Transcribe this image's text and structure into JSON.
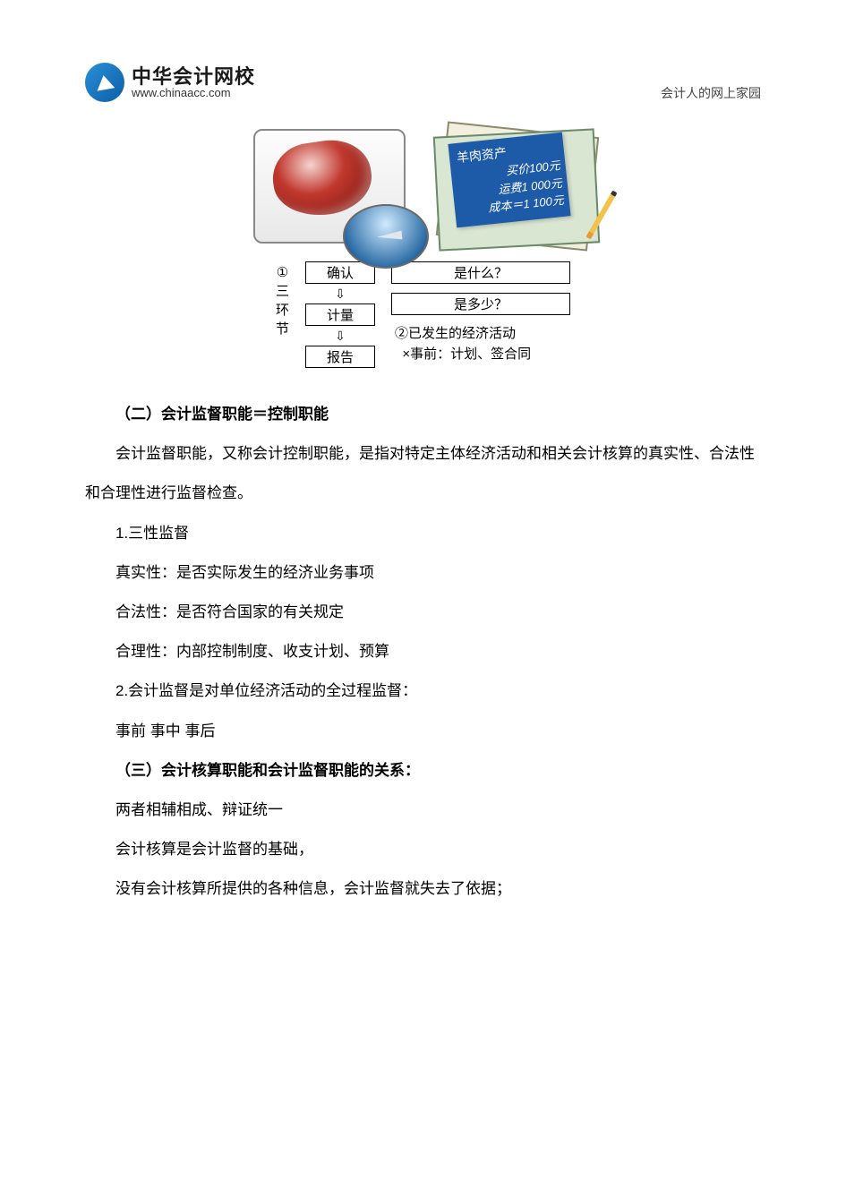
{
  "header": {
    "logo_cn": "中华会计网校",
    "logo_url": "www.chinaacc.com",
    "tagline": "会计人的网上家园"
  },
  "illustration": {
    "ledger": {
      "title": "羊肉资产",
      "line1": "买价100元",
      "line2": "运费1 000元",
      "line3": "成本＝1 100元"
    },
    "side_label_mark": "①",
    "side_label": [
      "三",
      "环",
      "节"
    ],
    "flow_boxes": [
      "确认",
      "计量",
      "报告"
    ],
    "right_boxes": [
      "是什么？",
      "是多少？"
    ],
    "right_text_line1": "②已发生的经济活动",
    "right_text_line2": "×事前：计划、签合同"
  },
  "body": {
    "h2": "（二）会计监督职能＝控制职能",
    "p1": "会计监督职能，又称会计控制职能，是指对特定主体经济活动和相关会计核算的真实性、合法性和合理性进行监督检查。",
    "p2": "1.三性监督",
    "p3": "真实性：是否实际发生的经济业务事项",
    "p4": "合法性：是否符合国家的有关规定",
    "p5": "合理性：内部控制制度、收支计划、预算",
    "p6": "2.会计监督是对单位经济活动的全过程监督：",
    "p7": "事前  事中  事后",
    "h3": "（三）会计核算职能和会计监督职能的关系：",
    "p8": "两者相辅相成、辩证统一",
    "p9": "会计核算是会计监督的基础，",
    "p10": "没有会计核算所提供的各种信息，会计监督就失去了依据；"
  }
}
